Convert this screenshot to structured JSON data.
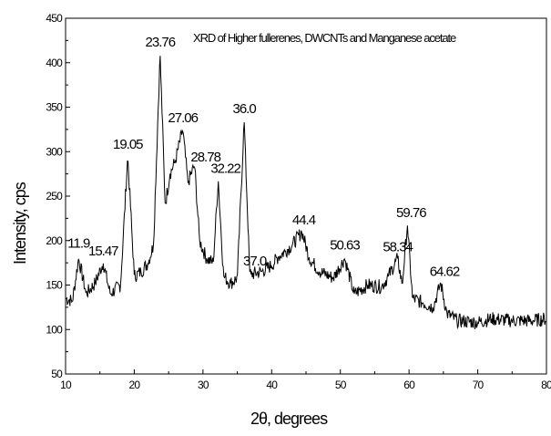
{
  "chart_data": {
    "type": "line",
    "title": "XRD of Higher fullerenes, DWCNTs and Manganese acetate",
    "xlabel": "2θ, degrees",
    "ylabel": "Intensity, cps",
    "xlim": [
      10,
      80
    ],
    "ylim": [
      50,
      450
    ],
    "xticks": [
      10,
      20,
      30,
      40,
      50,
      60,
      70,
      80
    ],
    "yticks": [
      50,
      100,
      150,
      200,
      250,
      300,
      350,
      400,
      450
    ],
    "grid": false,
    "legend": "none",
    "line_color": "#000000",
    "series": [
      {
        "x": [
          10,
          11,
          11.9,
          13,
          14.3,
          15.47,
          16.5,
          18,
          19.05,
          20,
          21,
          22,
          22.8,
          23.76,
          24.5,
          25.2,
          26,
          27.06,
          27.8,
          28.78,
          29.5,
          30.5,
          31.5,
          32.22,
          33,
          34,
          35,
          36.0,
          36.8,
          37.0,
          38.5,
          40,
          41,
          42,
          43,
          44.4,
          45.5,
          47,
          49,
          50.63,
          52,
          54,
          56,
          57,
          58.34,
          59,
          59.76,
          60.5,
          62,
          63.5,
          64.62,
          65.5,
          67,
          70,
          72,
          75,
          78,
          80
        ],
        "y": [
          135,
          132,
          180,
          140,
          152,
          175,
          140,
          150,
          295,
          160,
          165,
          175,
          195,
          410,
          240,
          275,
          290,
          325,
          265,
          285,
          200,
          180,
          175,
          268,
          160,
          152,
          158,
          335,
          165,
          162,
          165,
          172,
          182,
          188,
          195,
          210,
          180,
          165,
          158,
          180,
          140,
          150,
          148,
          160,
          180,
          150,
          218,
          135,
          130,
          125,
          152,
          118,
          110,
          108,
          112,
          110,
          110,
          112
        ]
      }
    ],
    "annotations": [
      {
        "text": "11.9",
        "x": 11.9
      },
      {
        "text": "15.47",
        "x": 15.47
      },
      {
        "text": "19.05",
        "x": 19.05
      },
      {
        "text": "23.76",
        "x": 23.76
      },
      {
        "text": "27.06",
        "x": 27.06
      },
      {
        "text": "28.78",
        "x": 28.78
      },
      {
        "text": "32.22",
        "x": 32.22
      },
      {
        "text": "36.0",
        "x": 36.0
      },
      {
        "text": "37.0",
        "x": 37.0
      },
      {
        "text": "44.4",
        "x": 44.4
      },
      {
        "text": "50.63",
        "x": 50.63
      },
      {
        "text": "58.34",
        "x": 58.34
      },
      {
        "text": "59.76",
        "x": 59.76
      },
      {
        "text": "64.62",
        "x": 64.62
      }
    ]
  }
}
